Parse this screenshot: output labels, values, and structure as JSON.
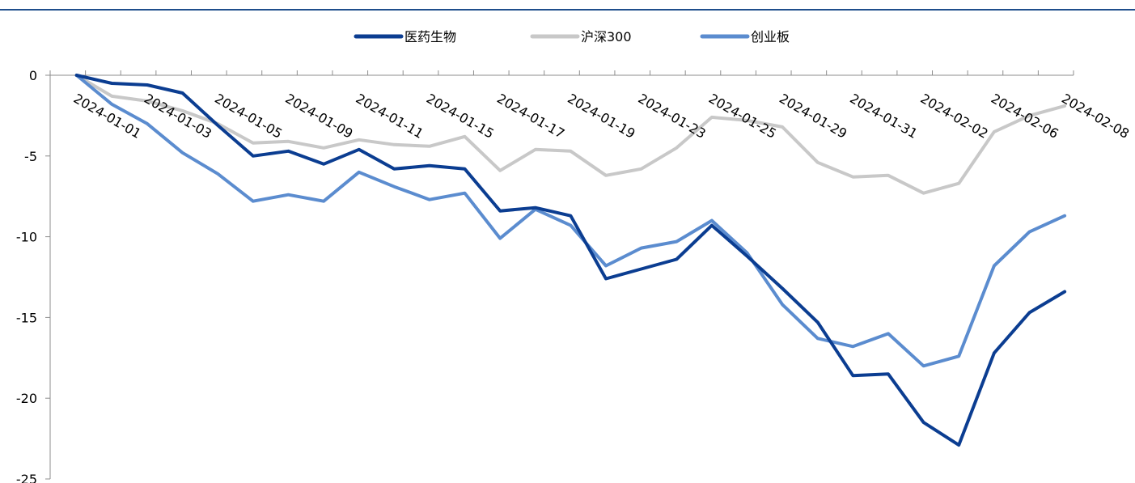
{
  "chart_data": {
    "type": "line",
    "title": "",
    "xlabel": "",
    "ylabel": "",
    "ylim": [
      -25,
      0
    ],
    "yticks": [
      0,
      -5,
      -10,
      -15,
      -20,
      -25
    ],
    "grid": false,
    "legend_position": "top-center",
    "x": [
      "2024-01-01",
      "2024-01-02",
      "2024-01-03",
      "2024-01-04",
      "2024-01-05",
      "2024-01-08",
      "2024-01-09",
      "2024-01-10",
      "2024-01-11",
      "2024-01-12",
      "2024-01-15",
      "2024-01-16",
      "2024-01-17",
      "2024-01-18",
      "2024-01-19",
      "2024-01-22",
      "2024-01-23",
      "2024-01-24",
      "2024-01-25",
      "2024-01-26",
      "2024-01-29",
      "2024-01-30",
      "2024-01-31",
      "2024-02-01",
      "2024-02-02",
      "2024-02-05",
      "2024-02-06",
      "2024-02-07",
      "2024-02-08"
    ],
    "xtick_labels": [
      "2024-01-01",
      "2024-01-03",
      "2024-01-05",
      "2024-01-09",
      "2024-01-11",
      "2024-01-15",
      "2024-01-17",
      "2024-01-19",
      "2024-01-23",
      "2024-01-25",
      "2024-01-29",
      "2024-01-31",
      "2024-02-02",
      "2024-02-06",
      "2024-02-08"
    ],
    "series": [
      {
        "name": "医药生物",
        "color": "#0b3d91",
        "values": [
          0,
          -0.5,
          -0.6,
          -1.1,
          -3.1,
          -5.0,
          -4.7,
          -5.5,
          -4.6,
          -5.8,
          -5.6,
          -5.8,
          -8.4,
          -8.2,
          -8.7,
          -12.6,
          -12.0,
          -11.4,
          -9.3,
          -11.2,
          -13.2,
          -15.3,
          -18.6,
          -18.5,
          -21.5,
          -22.9,
          -17.2,
          -14.7,
          -13.4
        ]
      },
      {
        "name": "沪深300",
        "color": "#c8c8c8",
        "values": [
          0,
          -1.3,
          -1.6,
          -2.2,
          -3.0,
          -4.2,
          -4.1,
          -4.5,
          -4.0,
          -4.3,
          -4.4,
          -3.8,
          -5.9,
          -4.6,
          -4.7,
          -6.2,
          -5.8,
          -4.5,
          -2.6,
          -2.8,
          -3.2,
          -5.4,
          -6.3,
          -6.2,
          -7.3,
          -6.7,
          -3.5,
          -2.5,
          -1.9
        ]
      },
      {
        "name": "创业板",
        "color": "#5b8ccf",
        "values": [
          0,
          -1.8,
          -3.0,
          -4.8,
          -6.1,
          -7.8,
          -7.4,
          -7.8,
          -6.0,
          -6.9,
          -7.7,
          -7.3,
          -10.1,
          -8.3,
          -9.3,
          -11.8,
          -10.7,
          -10.3,
          -9.0,
          -11.0,
          -14.2,
          -16.3,
          -16.8,
          -16.0,
          -18.0,
          -17.4,
          -11.8,
          -9.7,
          -8.7
        ]
      }
    ]
  }
}
